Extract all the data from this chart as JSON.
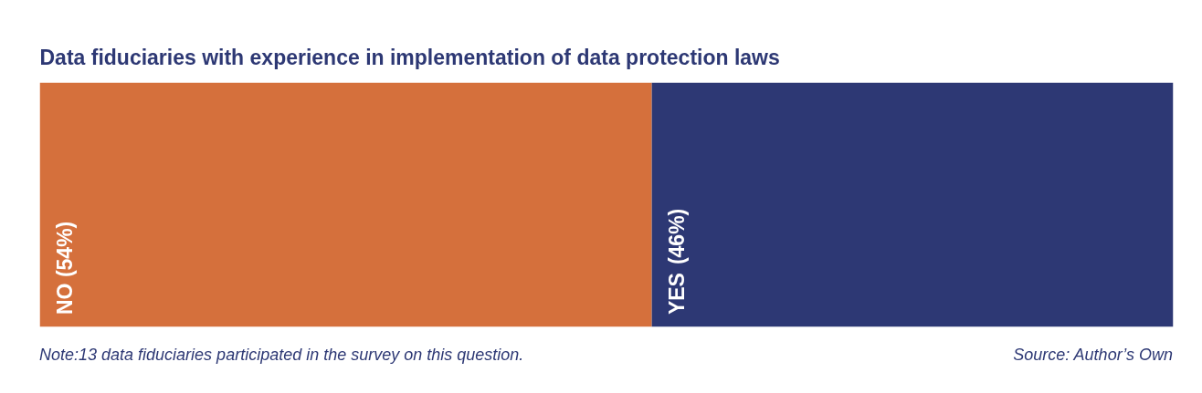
{
  "chart_data": {
    "type": "bar",
    "stacked": true,
    "orientation": "horizontal",
    "title": "Data fiduciaries with experience in implementation of data protection laws",
    "categories": [
      null
    ],
    "tick_labels": false,
    "grid": false,
    "series": [
      {
        "name": "NO",
        "color": "#d5703c",
        "values": [
          54
        ],
        "value_labels": [
          "(54%)"
        ]
      },
      {
        "name": "YES",
        "color": "#2d3874",
        "values": [
          46
        ],
        "value_labels": [
          "(46%)"
        ]
      }
    ],
    "annotations": [
      "Note:13 data fiduciaries participated in the survey on this question.",
      "Source: Author’s Own"
    ]
  }
}
